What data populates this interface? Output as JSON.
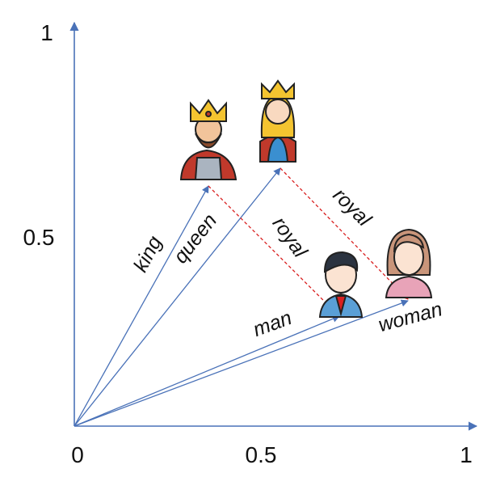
{
  "axes": {
    "origin": "0",
    "x_ticks": [
      "0.5",
      "1"
    ],
    "y_ticks": [
      "0.5",
      "1"
    ]
  },
  "vectors": [
    {
      "label": "king"
    },
    {
      "label": "queen"
    },
    {
      "label": "man"
    },
    {
      "label": "woman"
    }
  ],
  "relations": [
    {
      "label": "royal"
    },
    {
      "label": "royal"
    }
  ]
}
